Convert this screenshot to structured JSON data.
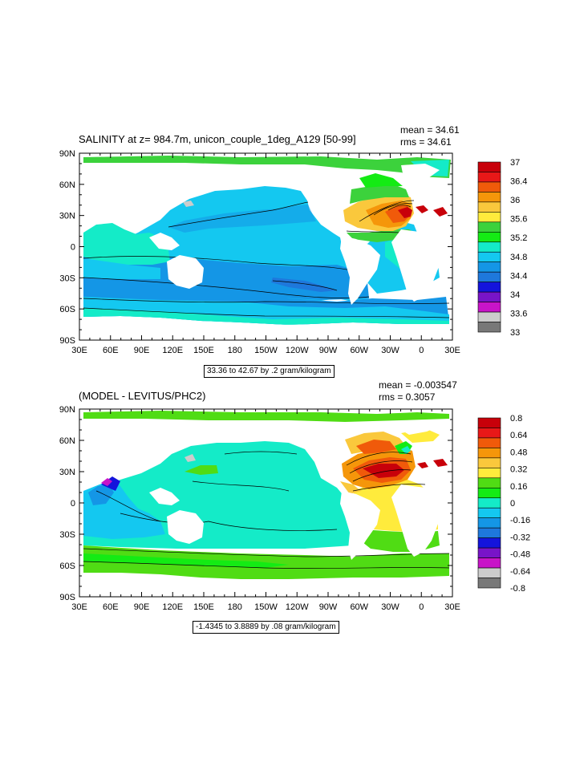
{
  "chart_data": [
    {
      "type": "heatmap",
      "title": "SALINITY at z= 984.7m, unicon_couple_1deg_A129 [50-99]",
      "stats": {
        "mean": "mean = 34.61",
        "rms": "rms = 34.61"
      },
      "range_label": "33.36 to 42.67 by .2 gram/kilogram",
      "xticks": [
        "30E",
        "60E",
        "90E",
        "120E",
        "150E",
        "180",
        "150W",
        "120W",
        "90W",
        "60W",
        "30W",
        "0",
        "30E"
      ],
      "yticks": [
        "90N",
        "60N",
        "30N",
        "0",
        "30S",
        "60S",
        "90S"
      ],
      "colorbar": {
        "labels": [
          "37",
          "36.4",
          "36",
          "35.6",
          "35.2",
          "34.8",
          "34.4",
          "34",
          "33.6",
          "33"
        ],
        "colors": [
          "#c8000a",
          "#e81818",
          "#f05a0a",
          "#f5960a",
          "#fac83c",
          "#ffeb3c",
          "#3cd23c",
          "#14eb14",
          "#14ebc8",
          "#14c8f0",
          "#1496e6",
          "#1e78dc",
          "#1414dc",
          "#7814c8",
          "#c814c8",
          "#cccccc",
          "#787878"
        ]
      }
    },
    {
      "type": "heatmap",
      "title": "(MODEL - LEVITUS/PHC2)",
      "stats": {
        "mean": "mean = -0.003547",
        "rms": "rms = 0.3057"
      },
      "range_label": "-1.4345 to 3.8889 by .08 gram/kilogram",
      "xticks": [
        "30E",
        "60E",
        "90E",
        "120E",
        "150E",
        "180",
        "150W",
        "120W",
        "90W",
        "60W",
        "30W",
        "0",
        "30E"
      ],
      "yticks": [
        "90N",
        "60N",
        "30N",
        "0",
        "30S",
        "60S",
        "90S"
      ],
      "colorbar": {
        "labels": [
          "0.8",
          "0.64",
          "0.48",
          "0.32",
          "0.16",
          "0",
          "-0.16",
          "-0.32",
          "-0.48",
          "-0.64",
          "-0.8"
        ],
        "colors": [
          "#c8000a",
          "#e81818",
          "#f05a0a",
          "#f5960a",
          "#fac83c",
          "#ffeb3c",
          "#50dc14",
          "#14eb14",
          "#14ebc8",
          "#14c8f0",
          "#1496e6",
          "#1e78dc",
          "#1414dc",
          "#7814c8",
          "#c814c8",
          "#cccccc",
          "#787878"
        ]
      }
    }
  ]
}
